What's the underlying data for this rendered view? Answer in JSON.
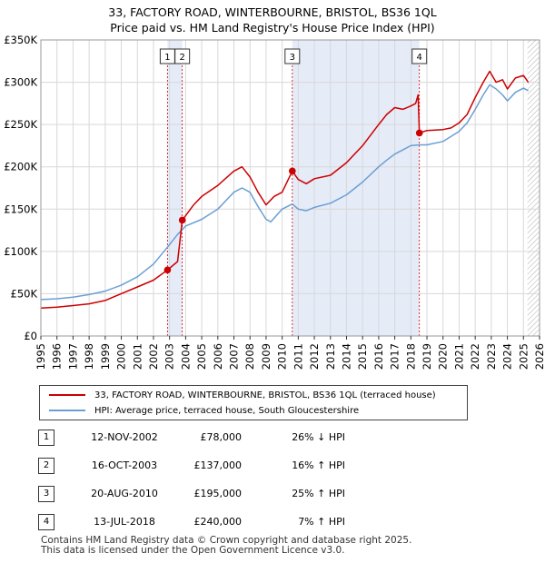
{
  "chart_data": {
    "type": "line",
    "title": "33, FACTORY ROAD, WINTERBOURNE, BRISTOL, BS36 1QL",
    "subtitle": "Price paid vs. HM Land Registry's House Price Index (HPI)",
    "xlabel": "",
    "ylabel": "",
    "xlim": [
      1995,
      2026
    ],
    "ylim": [
      0,
      350000
    ],
    "x_ticks": [
      "1995",
      "1996",
      "1997",
      "1998",
      "1999",
      "2000",
      "2001",
      "2002",
      "2003",
      "2004",
      "2005",
      "2006",
      "2007",
      "2008",
      "2009",
      "2010",
      "2011",
      "2012",
      "2013",
      "2014",
      "2015",
      "2016",
      "2017",
      "2018",
      "2019",
      "2020",
      "2021",
      "2022",
      "2023",
      "2024",
      "2025",
      "2026"
    ],
    "y_ticks": [
      {
        "value": 0,
        "label": "£0"
      },
      {
        "value": 50000,
        "label": "£50K"
      },
      {
        "value": 100000,
        "label": "£100K"
      },
      {
        "value": 150000,
        "label": "£150K"
      },
      {
        "value": 200000,
        "label": "£200K"
      },
      {
        "value": 250000,
        "label": "£250K"
      },
      {
        "value": 300000,
        "label": "£300K"
      },
      {
        "value": 350000,
        "label": "£350K"
      }
    ],
    "grid": true,
    "shaded_ranges": [
      [
        2002.87,
        2003.79
      ],
      [
        2010.63,
        2018.53
      ]
    ],
    "hatched_from": 2025.25,
    "series": [
      {
        "name": "33, FACTORY ROAD, WINTERBOURNE, BRISTOL, BS36 1QL (terraced house)",
        "color": "#cc0000",
        "x": [
          1995.0,
          1996.0,
          1997.0,
          1998.0,
          1999.0,
          2000.0,
          2001.0,
          2002.0,
          2002.87,
          2003.5,
          2003.79,
          2004.5,
          2005.0,
          2006.0,
          2007.0,
          2007.5,
          2008.0,
          2008.5,
          2009.0,
          2009.5,
          2010.0,
          2010.63,
          2011.0,
          2011.5,
          2012.0,
          2013.0,
          2014.0,
          2015.0,
          2016.0,
          2016.5,
          2017.0,
          2017.5,
          2018.0,
          2018.3,
          2018.45,
          2018.53,
          2019.0,
          2020.0,
          2020.5,
          2021.0,
          2021.5,
          2022.0,
          2022.5,
          2022.9,
          2023.3,
          2023.7,
          2024.0,
          2024.5,
          2025.0,
          2025.3
        ],
        "values": [
          33000,
          34000,
          36000,
          38000,
          42000,
          50000,
          58000,
          66000,
          78000,
          88000,
          137000,
          155000,
          165000,
          178000,
          195000,
          200000,
          188000,
          170000,
          155000,
          165000,
          170000,
          195000,
          185000,
          180000,
          186000,
          190000,
          205000,
          225000,
          250000,
          262000,
          270000,
          268000,
          272000,
          275000,
          285000,
          240000,
          243000,
          244000,
          246000,
          252000,
          262000,
          282000,
          300000,
          313000,
          300000,
          303000,
          292000,
          305000,
          308000,
          300000
        ]
      },
      {
        "name": "HPI: Average price, terraced house, South Gloucestershire",
        "color": "#6a9fd4",
        "x": [
          1995.0,
          1996.0,
          1997.0,
          1998.0,
          1999.0,
          2000.0,
          2001.0,
          2002.0,
          2002.87,
          2003.5,
          2004.0,
          2005.0,
          2006.0,
          2007.0,
          2007.5,
          2008.0,
          2008.5,
          2009.0,
          2009.3,
          2010.0,
          2010.63,
          2011.0,
          2011.5,
          2012.0,
          2013.0,
          2014.0,
          2015.0,
          2016.0,
          2016.5,
          2017.0,
          2017.5,
          2018.0,
          2018.53,
          2019.0,
          2020.0,
          2020.5,
          2021.0,
          2021.5,
          2022.0,
          2022.5,
          2022.9,
          2023.3,
          2023.7,
          2024.0,
          2024.5,
          2025.0,
          2025.3
        ],
        "values": [
          43000,
          44000,
          46000,
          49000,
          53000,
          60000,
          70000,
          85000,
          105000,
          120000,
          130000,
          138000,
          150000,
          170000,
          175000,
          170000,
          153000,
          138000,
          135000,
          150000,
          156000,
          150000,
          148000,
          152000,
          157000,
          167000,
          182000,
          200000,
          208000,
          215000,
          220000,
          225000,
          226000,
          226000,
          230000,
          236000,
          242000,
          252000,
          268000,
          285000,
          297000,
          292000,
          285000,
          278000,
          288000,
          293000,
          290000
        ]
      }
    ],
    "sale_markers": [
      {
        "label": "1",
        "x": 2002.87,
        "value": 78000
      },
      {
        "label": "2",
        "x": 2003.79,
        "value": 137000
      },
      {
        "label": "3",
        "x": 2010.63,
        "value": 195000
      },
      {
        "label": "4",
        "x": 2018.53,
        "value": 240000
      }
    ]
  },
  "legend": {
    "items": [
      {
        "label": "33, FACTORY ROAD, WINTERBOURNE, BRISTOL, BS36 1QL (terraced house)",
        "color": "#cc0000"
      },
      {
        "label": "HPI: Average price, terraced house, South Gloucestershire",
        "color": "#6a9fd4"
      }
    ]
  },
  "sales": [
    {
      "num": "1",
      "date": "12-NOV-2002",
      "price": "£78,000",
      "hpi": "26% ↓ HPI"
    },
    {
      "num": "2",
      "date": "16-OCT-2003",
      "price": "£137,000",
      "hpi": "16% ↑ HPI"
    },
    {
      "num": "3",
      "date": "20-AUG-2010",
      "price": "£195,000",
      "hpi": "25% ↑ HPI"
    },
    {
      "num": "4",
      "date": "13-JUL-2018",
      "price": "£240,000",
      "hpi": "7% ↑ HPI"
    }
  ],
  "footer": {
    "line1": "Contains HM Land Registry data © Crown copyright and database right 2025.",
    "line2": "This data is licensed under the Open Government Licence v3.0."
  }
}
